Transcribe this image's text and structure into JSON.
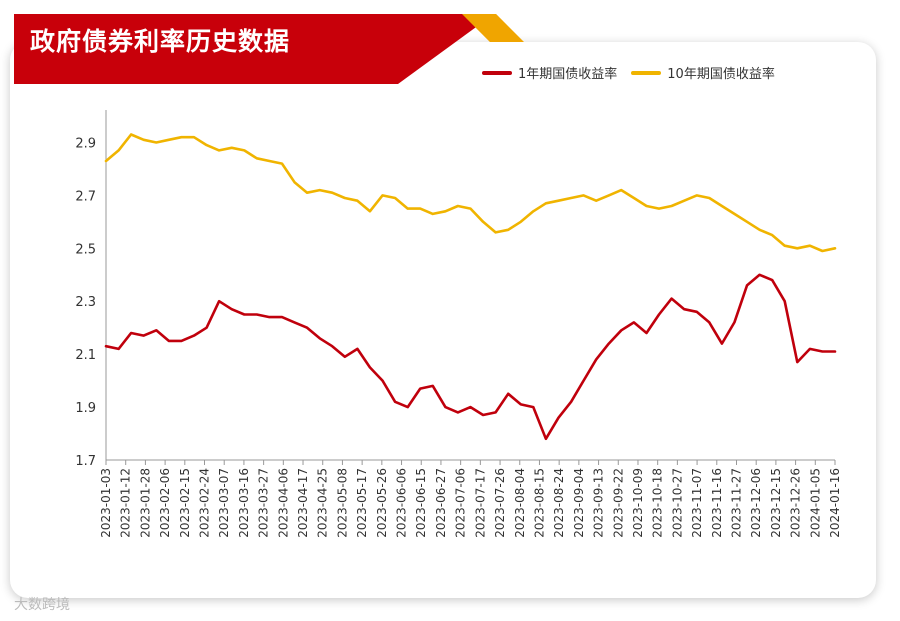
{
  "header": {
    "title": "政府债券利率历史数据"
  },
  "watermark": "大数跨境",
  "colors": {
    "banner": "#c8000a",
    "accent": "#f0a500",
    "series1": "#c0000c",
    "series2": "#f0b400"
  },
  "chart_data": {
    "type": "line",
    "title": "政府债券利率历史数据",
    "ylim": [
      1.7,
      3.0
    ],
    "yticks": [
      1.7,
      1.9,
      2.1,
      2.3,
      2.5,
      2.7,
      2.9
    ],
    "xticks": [
      "2023-01-03",
      "2023-01-12",
      "2023-01-28",
      "2023-02-06",
      "2023-02-15",
      "2023-02-24",
      "2023-03-07",
      "2023-03-16",
      "2023-03-27",
      "2023-04-06",
      "2023-04-17",
      "2023-04-25",
      "2023-05-08",
      "2023-05-17",
      "2023-05-26",
      "2023-06-06",
      "2023-06-15",
      "2023-06-27",
      "2023-07-06",
      "2023-07-17",
      "2023-07-26",
      "2023-08-04",
      "2023-08-15",
      "2023-08-24",
      "2023-09-04",
      "2023-09-13",
      "2023-09-22",
      "2023-10-09",
      "2023-10-18",
      "2023-10-27",
      "2023-11-07",
      "2023-11-16",
      "2023-11-27",
      "2023-12-06",
      "2023-12-15",
      "2023-12-26",
      "2024-01-05",
      "2024-01-16"
    ],
    "grid": false,
    "legend_position": "top-right",
    "series": [
      {
        "name": "1年期国债收益率",
        "color": "#c0000c",
        "values": [
          2.13,
          2.12,
          2.18,
          2.17,
          2.19,
          2.15,
          2.15,
          2.17,
          2.2,
          2.3,
          2.27,
          2.25,
          2.25,
          2.24,
          2.24,
          2.22,
          2.2,
          2.16,
          2.13,
          2.09,
          2.12,
          2.05,
          2.0,
          1.92,
          1.9,
          1.97,
          1.98,
          1.9,
          1.88,
          1.9,
          1.87,
          1.88,
          1.95,
          1.91,
          1.9,
          1.78,
          1.86,
          1.92,
          2.0,
          2.08,
          2.14,
          2.19,
          2.22,
          2.18,
          2.25,
          2.31,
          2.27,
          2.26,
          2.22,
          2.14,
          2.22,
          2.36,
          2.4,
          2.38,
          2.3,
          2.07,
          2.12,
          2.11,
          2.11
        ]
      },
      {
        "name": "10年期国债收益率",
        "color": "#f0b400",
        "values": [
          2.83,
          2.87,
          2.93,
          2.91,
          2.9,
          2.91,
          2.92,
          2.92,
          2.89,
          2.87,
          2.88,
          2.87,
          2.84,
          2.83,
          2.82,
          2.75,
          2.71,
          2.72,
          2.71,
          2.69,
          2.68,
          2.64,
          2.7,
          2.69,
          2.65,
          2.65,
          2.63,
          2.64,
          2.66,
          2.65,
          2.6,
          2.56,
          2.57,
          2.6,
          2.64,
          2.67,
          2.68,
          2.69,
          2.7,
          2.68,
          2.7,
          2.72,
          2.69,
          2.66,
          2.65,
          2.66,
          2.68,
          2.7,
          2.69,
          2.66,
          2.63,
          2.6,
          2.57,
          2.55,
          2.51,
          2.5,
          2.51,
          2.49,
          2.5
        ]
      }
    ]
  }
}
